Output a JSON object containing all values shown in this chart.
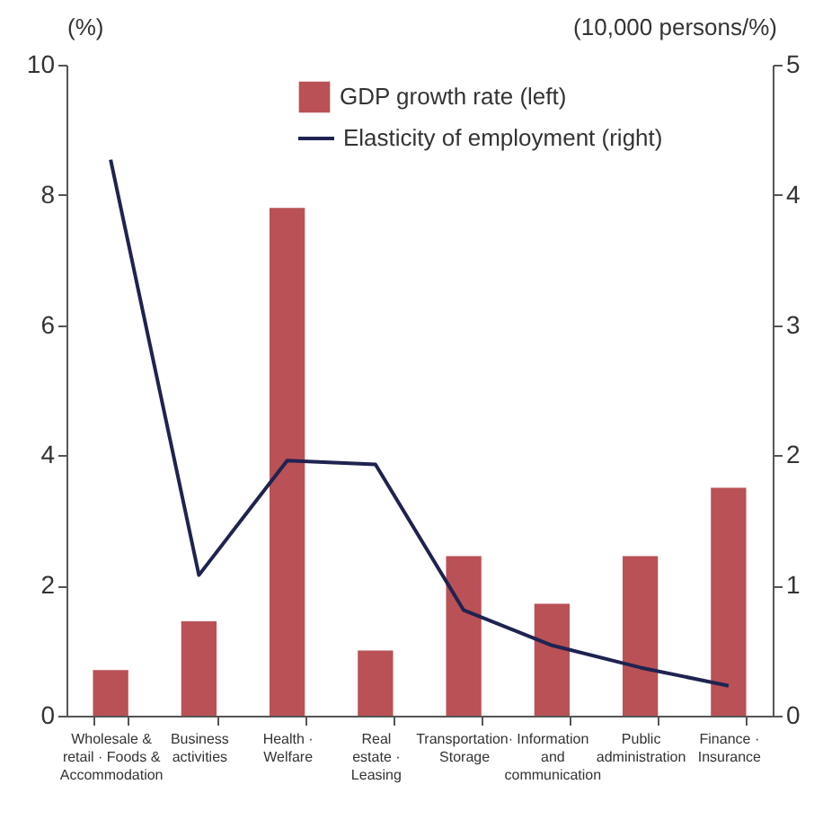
{
  "chart_data": {
    "type": "bar",
    "categories": [
      "Wholesale &\nretail · Foods &\nAccommodation",
      "Business\nactivities",
      "Health ·\nWelfare",
      "Real\nestate ·\nLeasing",
      "Transportation·\nStorage",
      "Information\nand\ncommunication",
      "Public\nadministration",
      "Finance ·\nInsurance"
    ],
    "series": [
      {
        "name": "GDP growth rate (left)",
        "color": "#b95156",
        "values": [
          0.7,
          1.45,
          7.8,
          1.0,
          2.45,
          1.72,
          2.45,
          3.5
        ]
      },
      {
        "name": "Elasticity of employment (right)",
        "type": "line",
        "axis": "y2",
        "color": "#1f2350",
        "values": [
          4.27,
          1.08,
          1.96,
          1.93,
          0.81,
          0.54,
          0.37,
          0.23
        ]
      }
    ],
    "ylabel": "(%)",
    "y2label": "(10,000 persons/%)",
    "ylim": [
      0,
      10
    ],
    "yticks": [
      0,
      2,
      4,
      6,
      8,
      10
    ],
    "y2lim": [
      0,
      5
    ],
    "y2ticks": [
      0,
      1,
      2,
      3,
      4,
      5
    ],
    "legend": "top right"
  }
}
